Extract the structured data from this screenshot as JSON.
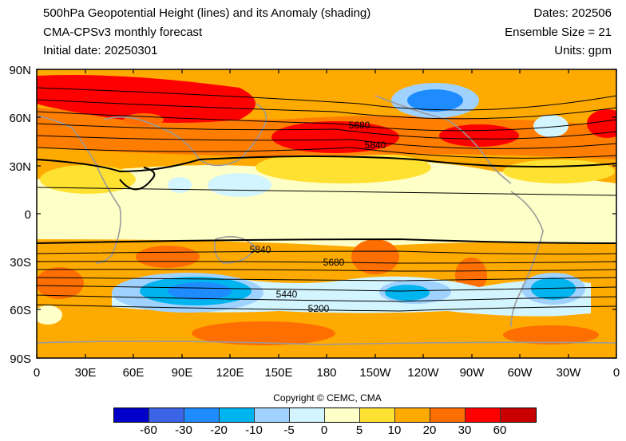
{
  "header": {
    "title": "500hPa Geopotential Height (lines) and its Anomaly (shading)",
    "model": "CMA-CPSv3 monthly forecast",
    "initial": "Initial date: 20250301",
    "dates": "Dates: 202506",
    "ensemble": "Ensemble Size = 21",
    "units": "Units: gpm"
  },
  "map": {
    "lat_labels": [
      "90N",
      "60N",
      "30N",
      "0",
      "30S",
      "60S",
      "90S"
    ],
    "lon_labels": [
      "0",
      "30E",
      "60E",
      "90E",
      "120E",
      "150E",
      "180",
      "150W",
      "120W",
      "90W",
      "60W",
      "30W",
      "0"
    ],
    "contour_labels": [
      "5680",
      "5840",
      "5840",
      "5680",
      "5440",
      "5200"
    ]
  },
  "copyright": "Copyright © CEMC, CMA",
  "colorbar": {
    "colors": [
      "#0000c8",
      "#3c64e6",
      "#1e8cff",
      "#00b4f0",
      "#a0d2ff",
      "#d2f5ff",
      "#ffffc8",
      "#ffe132",
      "#ffaa00",
      "#ff6e00",
      "#ff0000",
      "#c80000"
    ],
    "labels": [
      "-60",
      "-30",
      "-20",
      "-10",
      "-5",
      "0",
      "5",
      "10",
      "20",
      "30",
      "60"
    ]
  }
}
